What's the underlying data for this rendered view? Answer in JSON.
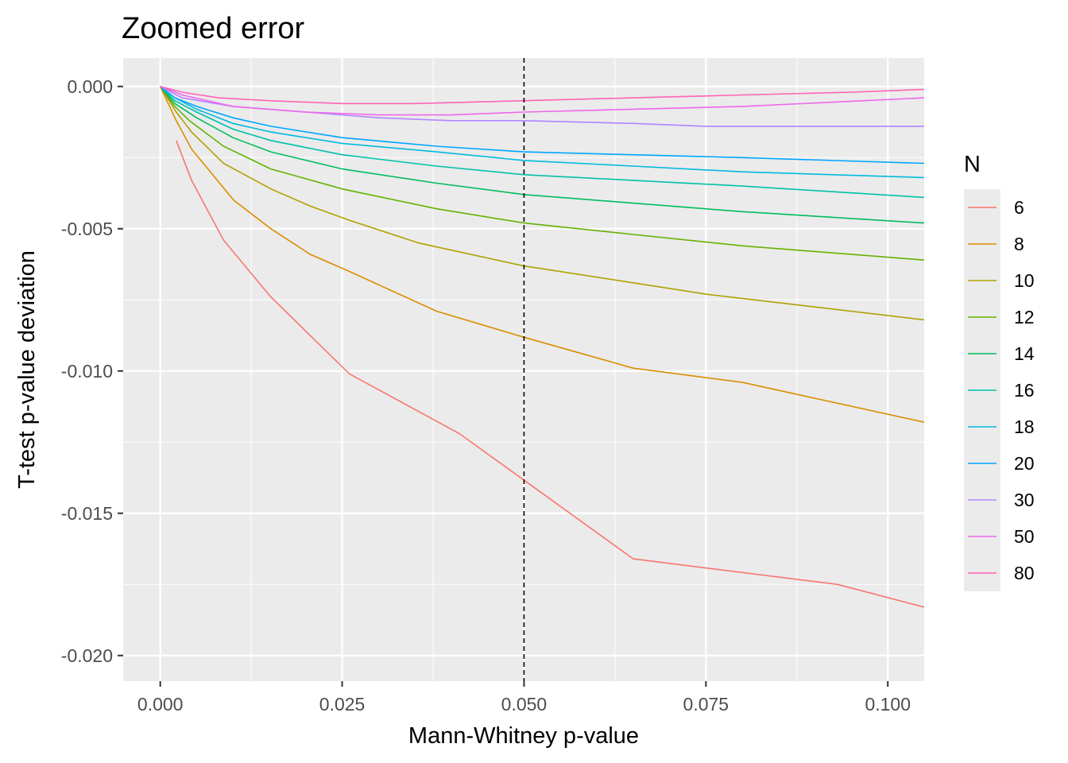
{
  "chart_data": {
    "type": "line",
    "title": "Zoomed error",
    "xlabel": "Mann-Whitney p-value",
    "ylabel": "T-test p-value deviation",
    "xlim": [
      -0.0051,
      0.105
    ],
    "ylim": [
      -0.0209,
      0.001
    ],
    "x_ticks": [
      {
        "value": 0.0,
        "label": "0.000"
      },
      {
        "value": 0.025,
        "label": "0.025"
      },
      {
        "value": 0.05,
        "label": "0.050"
      },
      {
        "value": 0.075,
        "label": "0.075"
      },
      {
        "value": 0.1,
        "label": "0.100"
      }
    ],
    "y_ticks": [
      {
        "value": 0.0,
        "label": "0.000"
      },
      {
        "value": -0.005,
        "label": "-0.005"
      },
      {
        "value": -0.01,
        "label": "-0.010"
      },
      {
        "value": -0.015,
        "label": "-0.015"
      },
      {
        "value": -0.02,
        "label": "-0.020"
      }
    ],
    "vline": 0.05,
    "grid": true,
    "legend": {
      "title": "N",
      "placement": "right"
    },
    "series": [
      {
        "name": "6",
        "color": "#F8766D",
        "points": [
          [
            0.0022,
            -0.0019
          ],
          [
            0.0043,
            -0.0033
          ],
          [
            0.0087,
            -0.0054
          ],
          [
            0.0152,
            -0.0074
          ],
          [
            0.026,
            -0.0101
          ],
          [
            0.0411,
            -0.0122
          ],
          [
            0.0498,
            -0.0138
          ],
          [
            0.065,
            -0.0166
          ],
          [
            0.0931,
            -0.0175
          ],
          [
            0.105,
            -0.0183
          ]
        ]
      },
      {
        "name": "8",
        "color": "#DB8E00",
        "points": [
          [
            0.0,
            0.0
          ],
          [
            0.0022,
            -0.0012
          ],
          [
            0.0043,
            -0.0022
          ],
          [
            0.0101,
            -0.004
          ],
          [
            0.0152,
            -0.005
          ],
          [
            0.0206,
            -0.0059
          ],
          [
            0.026,
            -0.0065
          ],
          [
            0.038,
            -0.0079
          ],
          [
            0.0498,
            -0.0088
          ],
          [
            0.065,
            -0.0099
          ],
          [
            0.08,
            -0.0104
          ],
          [
            0.105,
            -0.0118
          ]
        ]
      },
      {
        "name": "10",
        "color": "#AEA200",
        "points": [
          [
            0.0,
            0.0
          ],
          [
            0.0022,
            -0.0009
          ],
          [
            0.0043,
            -0.0016
          ],
          [
            0.0087,
            -0.0027
          ],
          [
            0.0152,
            -0.0036
          ],
          [
            0.0206,
            -0.0042
          ],
          [
            0.026,
            -0.0047
          ],
          [
            0.0355,
            -0.0055
          ],
          [
            0.0498,
            -0.0063
          ],
          [
            0.065,
            -0.0069
          ],
          [
            0.075,
            -0.0073
          ],
          [
            0.105,
            -0.0082
          ]
        ]
      },
      {
        "name": "12",
        "color": "#64B200",
        "points": [
          [
            0.0,
            0.0
          ],
          [
            0.002,
            -0.0007
          ],
          [
            0.004,
            -0.0012
          ],
          [
            0.0087,
            -0.0021
          ],
          [
            0.0152,
            -0.0029
          ],
          [
            0.025,
            -0.0036
          ],
          [
            0.038,
            -0.0043
          ],
          [
            0.05,
            -0.0048
          ],
          [
            0.065,
            -0.0052
          ],
          [
            0.08,
            -0.0056
          ],
          [
            0.105,
            -0.0061
          ]
        ]
      },
      {
        "name": "14",
        "color": "#00BD5C",
        "points": [
          [
            0.0,
            0.0
          ],
          [
            0.002,
            -0.0006
          ],
          [
            0.005,
            -0.0011
          ],
          [
            0.01,
            -0.0018
          ],
          [
            0.0152,
            -0.0023
          ],
          [
            0.025,
            -0.0029
          ],
          [
            0.038,
            -0.0034
          ],
          [
            0.05,
            -0.0038
          ],
          [
            0.065,
            -0.0041
          ],
          [
            0.08,
            -0.0044
          ],
          [
            0.105,
            -0.0048
          ]
        ]
      },
      {
        "name": "16",
        "color": "#00C1A7",
        "points": [
          [
            0.0,
            0.0
          ],
          [
            0.002,
            -0.0005
          ],
          [
            0.005,
            -0.0009
          ],
          [
            0.01,
            -0.0015
          ],
          [
            0.0152,
            -0.0019
          ],
          [
            0.025,
            -0.0024
          ],
          [
            0.038,
            -0.0028
          ],
          [
            0.05,
            -0.0031
          ],
          [
            0.065,
            -0.0033
          ],
          [
            0.08,
            -0.0035
          ],
          [
            0.105,
            -0.0039
          ]
        ]
      },
      {
        "name": "18",
        "color": "#00BADE",
        "points": [
          [
            0.0,
            0.0
          ],
          [
            0.002,
            -0.0004
          ],
          [
            0.005,
            -0.0008
          ],
          [
            0.01,
            -0.0013
          ],
          [
            0.0152,
            -0.0016
          ],
          [
            0.025,
            -0.002
          ],
          [
            0.038,
            -0.0023
          ],
          [
            0.05,
            -0.0026
          ],
          [
            0.065,
            -0.0028
          ],
          [
            0.08,
            -0.003
          ],
          [
            0.105,
            -0.0032
          ]
        ]
      },
      {
        "name": "20",
        "color": "#00A6FF",
        "points": [
          [
            0.0,
            0.0
          ],
          [
            0.002,
            -0.0004
          ],
          [
            0.005,
            -0.0007
          ],
          [
            0.01,
            -0.0011
          ],
          [
            0.0152,
            -0.0014
          ],
          [
            0.025,
            -0.0018
          ],
          [
            0.038,
            -0.0021
          ],
          [
            0.05,
            -0.0023
          ],
          [
            0.065,
            -0.0024
          ],
          [
            0.08,
            -0.0025
          ],
          [
            0.105,
            -0.0027
          ]
        ]
      },
      {
        "name": "30",
        "color": "#B385FF",
        "points": [
          [
            0.0,
            0.0
          ],
          [
            0.003,
            -0.0004
          ],
          [
            0.01,
            -0.0007
          ],
          [
            0.02,
            -0.0009
          ],
          [
            0.03,
            -0.0011
          ],
          [
            0.04,
            -0.0012
          ],
          [
            0.05,
            -0.0012
          ],
          [
            0.065,
            -0.0013
          ],
          [
            0.075,
            -0.0014
          ],
          [
            0.105,
            -0.0014
          ]
        ]
      },
      {
        "name": "50",
        "color": "#EF67EB",
        "points": [
          [
            0.0,
            0.0
          ],
          [
            0.003,
            -0.0003
          ],
          [
            0.01,
            -0.0007
          ],
          [
            0.02,
            -0.0009
          ],
          [
            0.03,
            -0.001
          ],
          [
            0.04,
            -0.001
          ],
          [
            0.05,
            -0.0009
          ],
          [
            0.065,
            -0.0008
          ],
          [
            0.08,
            -0.0007
          ],
          [
            0.105,
            -0.0004
          ]
        ]
      },
      {
        "name": "80",
        "color": "#FF63B6",
        "points": [
          [
            0.0,
            0.0
          ],
          [
            0.003,
            -0.0002
          ],
          [
            0.008,
            -0.0004
          ],
          [
            0.015,
            -0.0005
          ],
          [
            0.025,
            -0.0006
          ],
          [
            0.035,
            -0.0006
          ],
          [
            0.05,
            -0.0005
          ],
          [
            0.065,
            -0.0004
          ],
          [
            0.08,
            -0.0003
          ],
          [
            0.095,
            -0.0002
          ],
          [
            0.105,
            -0.0001
          ]
        ]
      }
    ]
  }
}
